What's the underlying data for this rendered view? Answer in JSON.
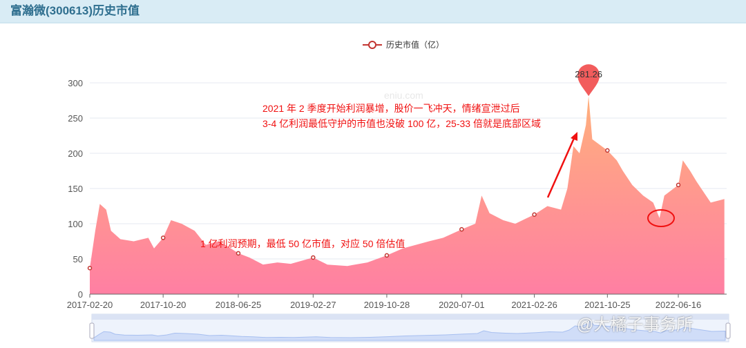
{
  "header": {
    "title": "富瀚微(300613)历史市值"
  },
  "watermarks": {
    "site": "eniu.com",
    "author": "@大橘子事务所"
  },
  "annotations": {
    "top_line1": "2021 年 2 季度开始利润暴增，股价一飞冲天，情绪宣泄过后",
    "top_line2": "3-4 亿利润最低守护的市值也没破 100 亿，25-33 倍就是底部区域",
    "bottom": "1 亿利润预期，最低 50 亿市值，对应 50 倍估值"
  },
  "colors": {
    "line": "#c23531",
    "area_top": "#ffb07c",
    "area_bottom": "#ff7fa3",
    "pin": "#f25c5c",
    "annotation": "#f01010"
  },
  "chart_data": {
    "type": "area",
    "title": "",
    "legend": {
      "label": "历史市值（亿）",
      "placement": "top-center"
    },
    "ylim": [
      0,
      300
    ],
    "yticks": [
      0,
      50,
      100,
      150,
      200,
      250,
      300
    ],
    "xticks": [
      "2017-02-20",
      "2017-10-20",
      "2018-06-25",
      "2019-02-27",
      "2019-10-28",
      "2020-07-01",
      "2021-02-26",
      "2021-10-25",
      "2022-06-16"
    ],
    "grid": true,
    "max_marker": {
      "date": "2021-08-24",
      "value": 281.26,
      "label": "281.26"
    },
    "data_zoom": {
      "start": 0,
      "end": 100
    },
    "points": [
      [
        "2017-02-20",
        37
      ],
      [
        "2017-03-10",
        90
      ],
      [
        "2017-03-25",
        128
      ],
      [
        "2017-04-15",
        120
      ],
      [
        "2017-05-01",
        90
      ],
      [
        "2017-06-01",
        78
      ],
      [
        "2017-07-15",
        75
      ],
      [
        "2017-09-01",
        80
      ],
      [
        "2017-09-20",
        65
      ],
      [
        "2017-10-20",
        80
      ],
      [
        "2017-11-15",
        105
      ],
      [
        "2017-12-20",
        100
      ],
      [
        "2018-02-01",
        90
      ],
      [
        "2018-03-10",
        70
      ],
      [
        "2018-04-20",
        75
      ],
      [
        "2018-05-20",
        68
      ],
      [
        "2018-06-25",
        58
      ],
      [
        "2018-08-01",
        52
      ],
      [
        "2018-09-15",
        42
      ],
      [
        "2018-11-01",
        45
      ],
      [
        "2018-12-15",
        43
      ],
      [
        "2019-02-27",
        52
      ],
      [
        "2019-04-15",
        42
      ],
      [
        "2019-06-20",
        40
      ],
      [
        "2019-08-25",
        45
      ],
      [
        "2019-10-28",
        55
      ],
      [
        "2019-12-20",
        65
      ],
      [
        "2020-02-01",
        70
      ],
      [
        "2020-03-15",
        75
      ],
      [
        "2020-05-01",
        80
      ],
      [
        "2020-07-01",
        92
      ],
      [
        "2020-08-15",
        100
      ],
      [
        "2020-09-05",
        140
      ],
      [
        "2020-10-01",
        115
      ],
      [
        "2020-11-15",
        105
      ],
      [
        "2020-12-25",
        100
      ],
      [
        "2021-02-26",
        113
      ],
      [
        "2021-04-10",
        125
      ],
      [
        "2021-05-25",
        120
      ],
      [
        "2021-06-15",
        150
      ],
      [
        "2021-07-05",
        210
      ],
      [
        "2021-07-25",
        200
      ],
      [
        "2021-08-15",
        240
      ],
      [
        "2021-08-24",
        281.26
      ],
      [
        "2021-09-05",
        220
      ],
      [
        "2021-10-25",
        204
      ],
      [
        "2021-11-25",
        190
      ],
      [
        "2021-12-15",
        175
      ],
      [
        "2022-01-15",
        155
      ],
      [
        "2022-02-20",
        140
      ],
      [
        "2022-03-25",
        130
      ],
      [
        "2022-04-15",
        108
      ],
      [
        "2022-05-01",
        140
      ],
      [
        "2022-06-16",
        155
      ],
      [
        "2022-07-01",
        190
      ],
      [
        "2022-07-25",
        175
      ],
      [
        "2022-08-15",
        160
      ],
      [
        "2022-10-01",
        130
      ],
      [
        "2022-11-15",
        135
      ]
    ]
  }
}
